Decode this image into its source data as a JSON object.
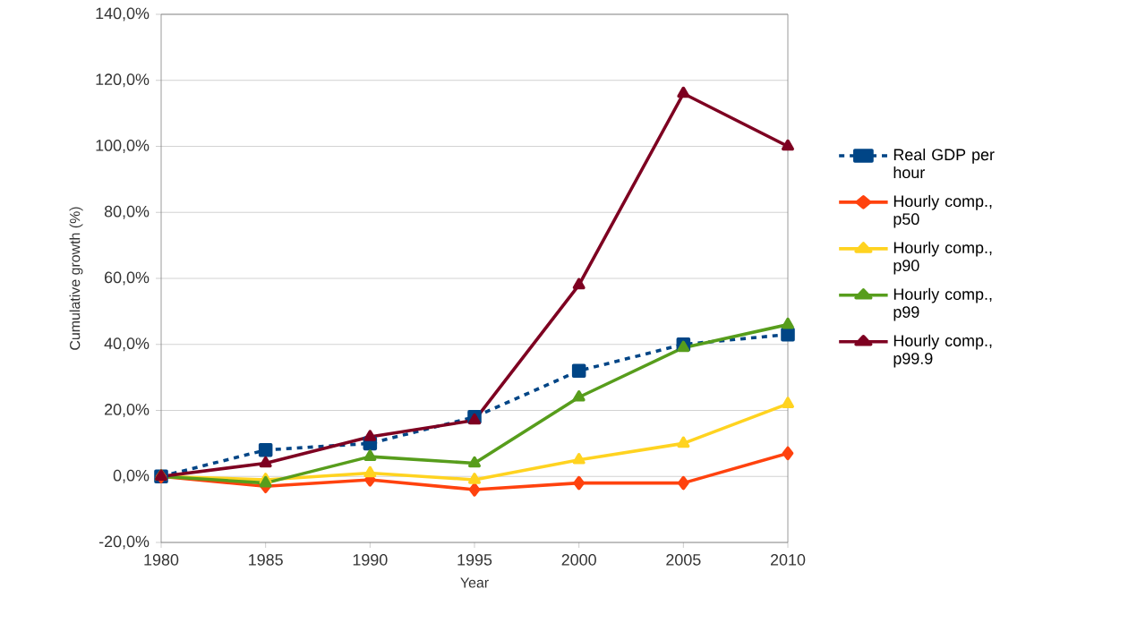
{
  "chart_data": {
    "type": "line",
    "xlabel": "Year",
    "ylabel": "Cumulative growth (%)",
    "x": [
      1980,
      1985,
      1990,
      1995,
      2000,
      2005,
      2010
    ],
    "series": [
      {
        "name": "Real GDP per hour",
        "color": "#004586",
        "marker": "square",
        "line_style": "dashed",
        "values": [
          0,
          8,
          10,
          18,
          32,
          40,
          43
        ]
      },
      {
        "name": "Hourly comp., p50",
        "color": "#ff420e",
        "marker": "diamond",
        "line_style": "solid",
        "values": [
          0,
          -3,
          -1,
          -4,
          -2,
          -2,
          7
        ]
      },
      {
        "name": "Hourly comp., p90",
        "color": "#ffd320",
        "marker": "triangle",
        "line_style": "solid",
        "values": [
          0,
          -1,
          1,
          -1,
          5,
          10,
          22
        ]
      },
      {
        "name": "Hourly comp., p99",
        "color": "#579d1c",
        "marker": "triangle",
        "line_style": "solid",
        "values": [
          0,
          -2,
          6,
          4,
          24,
          39,
          46
        ]
      },
      {
        "name": "Hourly comp., p99.9",
        "color": "#7e0021",
        "marker": "triangle",
        "line_style": "solid",
        "values": [
          0,
          4,
          12,
          17,
          58,
          116,
          100
        ]
      }
    ],
    "xlim": [
      1980,
      2010
    ],
    "xticks": [
      1980,
      1985,
      1990,
      1995,
      2000,
      2005,
      2010
    ],
    "ylim": [
      -20,
      140
    ],
    "yticks": [
      {
        "value": -20,
        "label": "-20,0%"
      },
      {
        "value": 0,
        "label": "0,0%"
      },
      {
        "value": 20,
        "label": "20,0%"
      },
      {
        "value": 40,
        "label": "40,0%"
      },
      {
        "value": 60,
        "label": "60,0%"
      },
      {
        "value": 80,
        "label": "80,0%"
      },
      {
        "value": 100,
        "label": "100,0%"
      },
      {
        "value": 120,
        "label": "120,0%"
      },
      {
        "value": 140,
        "label": "140,0%"
      }
    ],
    "grid": "y",
    "legend": "right"
  }
}
